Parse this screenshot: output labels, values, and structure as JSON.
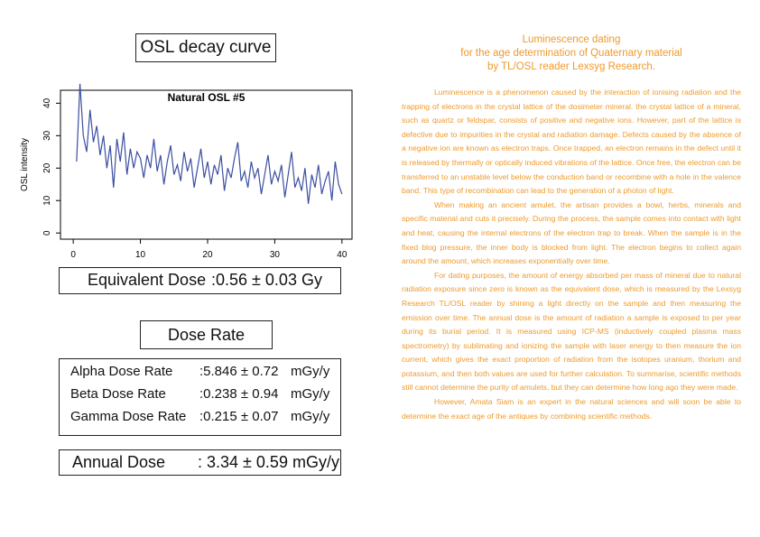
{
  "chart_data": {
    "type": "line",
    "title": "Natural OSL #5",
    "y_label": "OSL intensity",
    "color": "#3b4fa0",
    "x": [
      0.5,
      1,
      1.5,
      2,
      2.5,
      3,
      3.5,
      4,
      4.5,
      5,
      5.5,
      6,
      6.5,
      7,
      7.5,
      8,
      8.5,
      9,
      9.5,
      10,
      10.5,
      11,
      11.5,
      12,
      12.5,
      13,
      13.5,
      14,
      14.5,
      15,
      15.5,
      16,
      16.5,
      17,
      17.5,
      18,
      18.5,
      19,
      19.5,
      20,
      20.5,
      21,
      21.5,
      22,
      22.5,
      23,
      23.5,
      24,
      24.5,
      25,
      25.5,
      26,
      26.5,
      27,
      27.5,
      28,
      28.5,
      29,
      29.5,
      30,
      30.5,
      31,
      31.5,
      32,
      32.5,
      33,
      33.5,
      34,
      34.5,
      35,
      35.5,
      36,
      36.5,
      37,
      37.5,
      38,
      38.5,
      39,
      39.5,
      40
    ],
    "values": [
      22,
      46,
      30,
      25,
      38,
      28,
      33,
      24,
      30,
      20,
      27,
      14,
      29,
      22,
      31,
      18,
      26,
      20,
      25,
      23,
      17,
      24,
      20,
      29,
      19,
      24,
      15,
      22,
      27,
      18,
      21,
      16,
      25,
      19,
      23,
      14,
      20,
      26,
      17,
      22,
      15,
      21,
      18,
      24,
      13,
      20,
      17,
      23,
      28,
      16,
      19,
      14,
      22,
      17,
      20,
      12,
      18,
      24,
      15,
      19,
      16,
      21,
      11,
      18,
      25,
      14,
      17,
      13,
      20,
      9,
      18,
      14,
      21,
      12,
      16,
      19,
      10,
      22,
      15,
      12
    ],
    "xlim": [
      -1.9,
      41.5
    ],
    "ylim": [
      -1.9,
      44
    ],
    "xticks": [
      0,
      10,
      20,
      30,
      40
    ],
    "yticks": [
      0,
      10,
      20,
      30,
      40
    ]
  },
  "panels": {
    "curve_title": "OSL decay curve",
    "equivalent_dose": {
      "label": "Equivalent Dose",
      "value": ":0.56 ± 0.03 Gy"
    },
    "dose_rate_title": "Dose Rate",
    "dose_rates": [
      [
        "Alpha Dose Rate",
        ":5.846 ± 0.72",
        "mGy/y"
      ],
      [
        "Beta Dose Rate",
        ":0.238 ± 0.94",
        "mGy/y"
      ],
      [
        "Gamma Dose Rate",
        ":0.215 ± 0.07",
        "mGy/y"
      ]
    ],
    "annual_dose": {
      "label": "Annual Dose",
      "value": ": 3.34 ± 0.59 mGy/y"
    }
  },
  "article": {
    "title": [
      "Luminescence dating",
      "for the age determination of Quaternary material",
      "by TL/OSL reader Lexsyg Research."
    ],
    "paragraphs": [
      "Luminescence is a phenomenon caused by the interaction of ionising radiation and the trapping of electrons in the crystal lattice of the dosimeter mineral. the crystal lattice of a mineral, such as quartz or feldspar, consists of positive and negative ions. However, part of the lattice is defective due to impurities in the crystal and radiation damage. Defects caused by the absence of a negative ion are known as electron traps. Once trapped, an electron remains in the defect until it is released by thermally or optically induced vibrations of the lattice. Once free, the electron can be transferred to an unstable level below the conduction band or recombine with a hole in the valence band. This type of recombination can lead to the generation of a photon of light.",
      "When making an ancient amulet, the artisan provides a bowl, herbs, minerals and specific material and cuts it precisely. During the process, the sample comes into contact with light and heat, causing the internal electrons of the electron trap to break. When the sample is in the fixed blog pressure, the inner body is blocked from light. The electron begins to collect again around the amount, which increases exponentially over time.",
      "For dating purposes, the amount of energy absorbed per mass of mineral due to natural radiation exposure since zero is known as the equivalent dose, which is measured by the Lexsyg Research TL/OSL reader by shining a light directly on the sample and then measuring the emission over time. The annual dose is the amount of radiation a sample is exposed to per year during its burial period. It is measured using ICP-MS (inductively coupled plasma mass spectrometry) by sublimating and ionizing the sample with laser energy to then measure the ion current, which gives the exact proportion of radiation from the isotopes uranium, thorium and potassium, and then both values are used for further calculation. To summarise, scientific methods still cannot determine the purity of amulets, but they can determine how long ago they were made.",
      "However, Amata Siam is an expert in the natural sciences and will soon be able to determine the exact age of the antiques by combining scientific methods."
    ]
  }
}
